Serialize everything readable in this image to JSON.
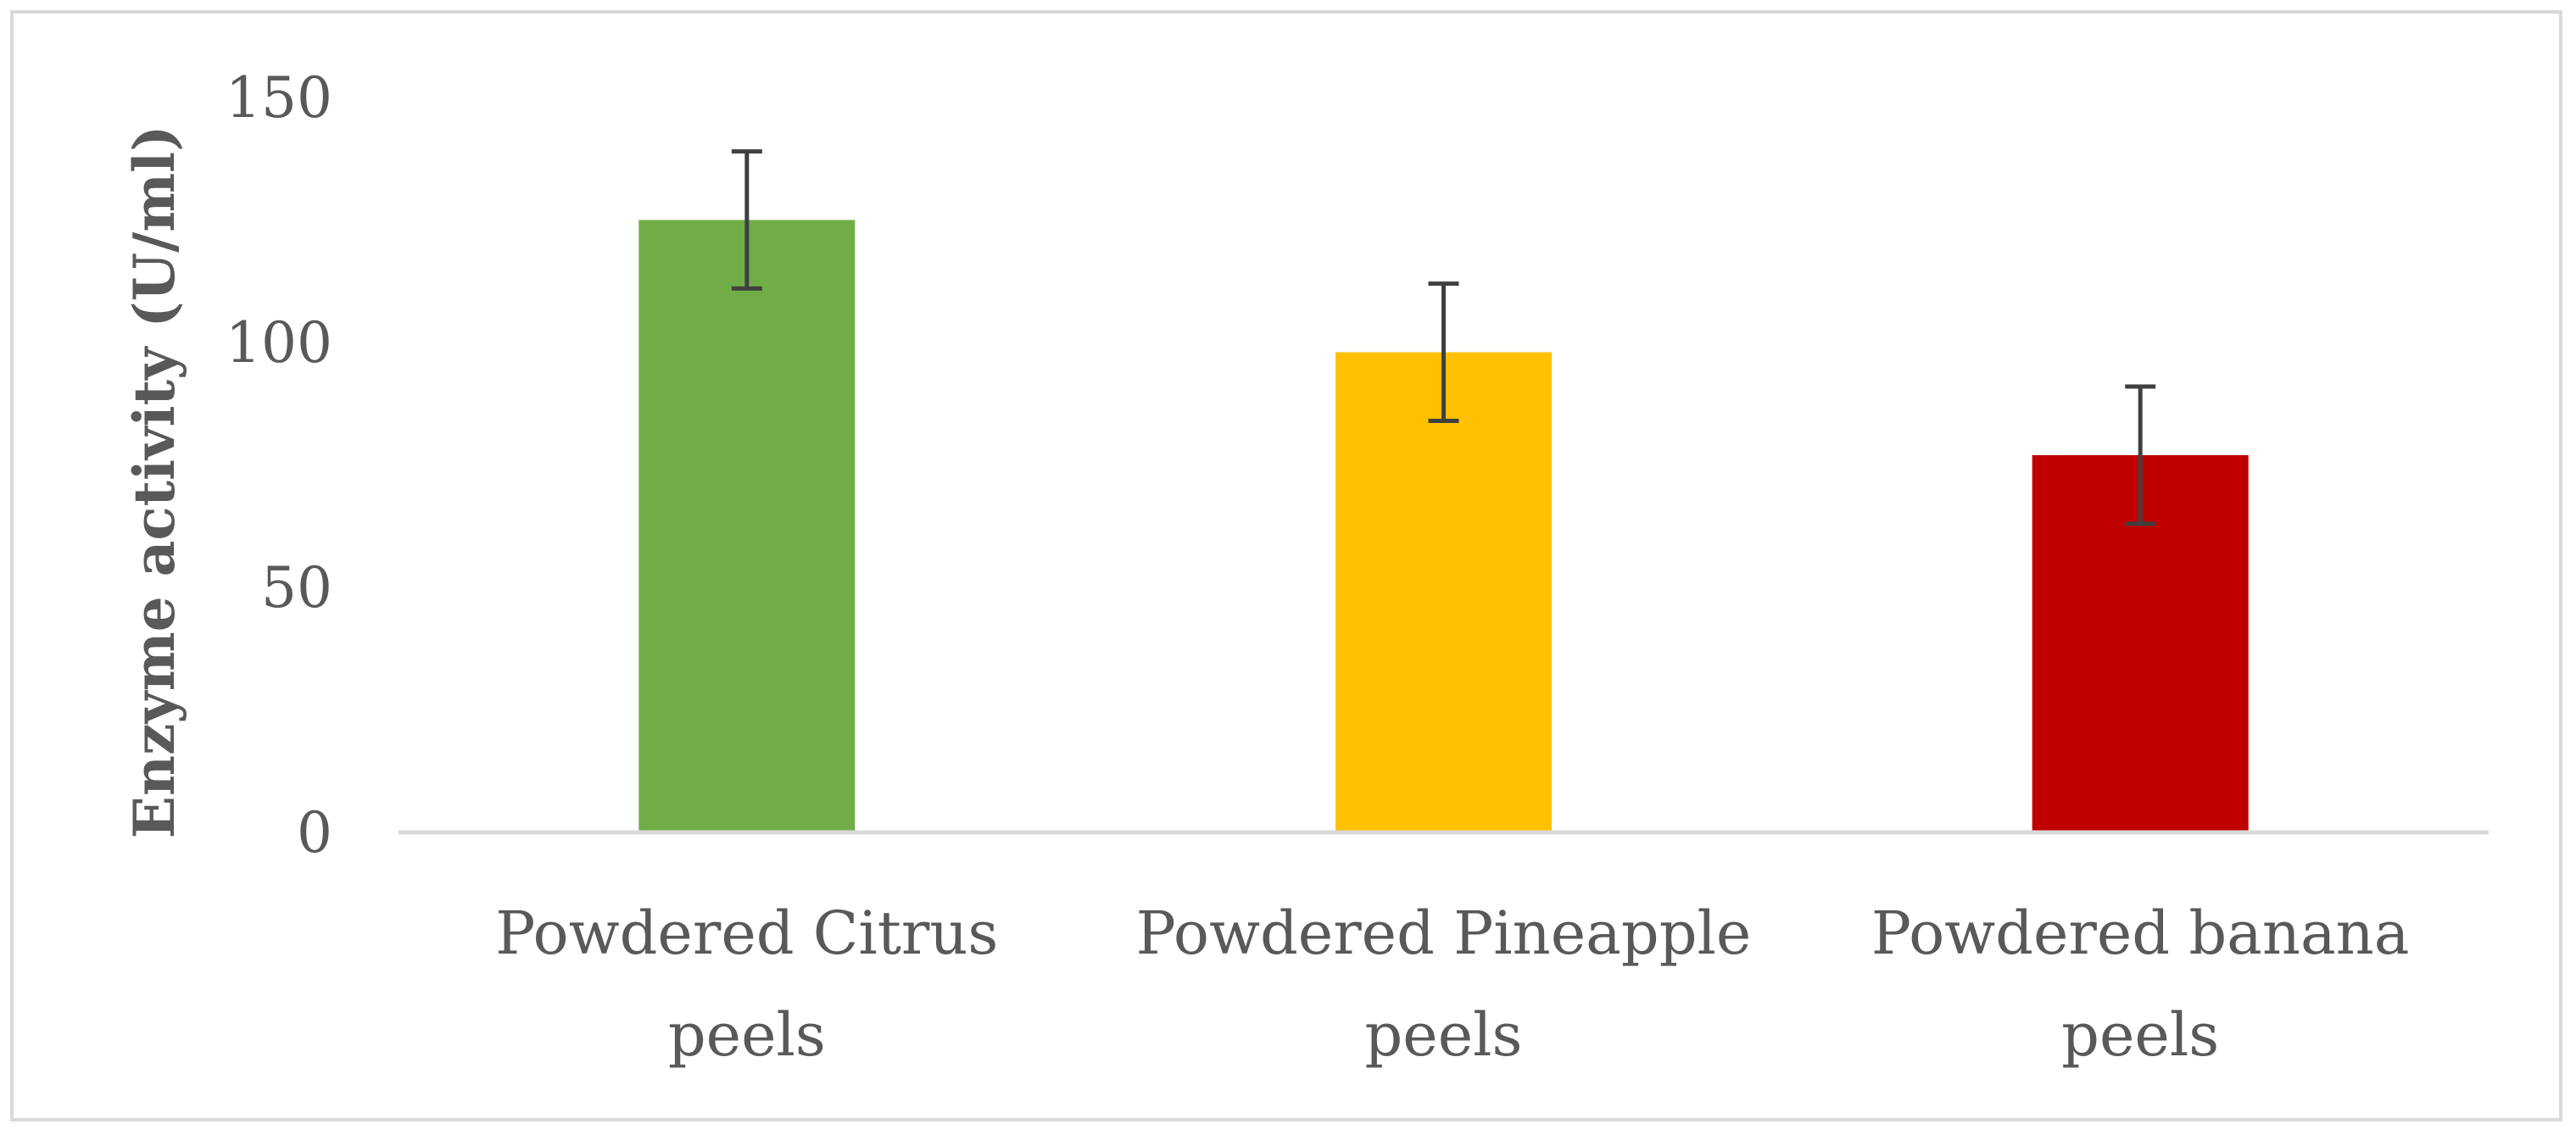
{
  "chart_data": {
    "type": "bar",
    "title": "",
    "xlabel": "",
    "ylabel": "Enzyme activity (U/ml)",
    "ylim": [
      0,
      150
    ],
    "yticks": [
      0,
      50,
      100,
      150
    ],
    "grid": false,
    "legend": "none",
    "categories": [
      [
        "Powdered Citrus",
        "peels"
      ],
      [
        "Powdered Pineapple",
        "peels"
      ],
      [
        "Powdered banana",
        "peels"
      ]
    ],
    "values": [
      125,
      98,
      77
    ],
    "error": [
      14,
      14,
      14
    ],
    "colors": [
      "#70ad47",
      "#ffc000",
      "#c00000"
    ],
    "axis_color": "#d9d9d9",
    "errorbar_color": "#404040",
    "text_color": "#595959"
  }
}
